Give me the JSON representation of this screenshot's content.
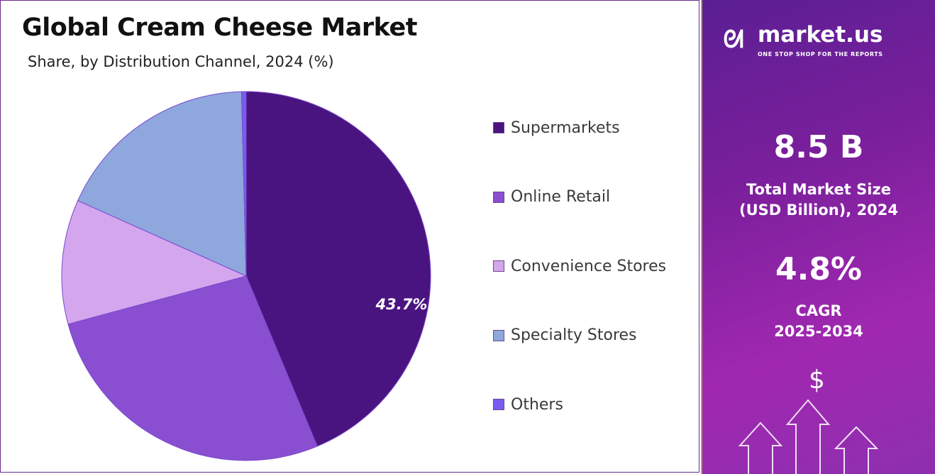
{
  "header": {
    "title": "Global Cream Cheese Market",
    "subtitle": "Share, by Distribution Channel, 2024 (%)"
  },
  "chart_data": {
    "type": "pie",
    "title": "Global Cream Cheese Market",
    "subtitle": "Share, by Distribution Channel, 2024 (%)",
    "categories": [
      "Supermarkets",
      "Online Retail",
      "Convenience Stores",
      "Specialty Stores",
      "Others"
    ],
    "values": [
      43.7,
      27.1,
      10.9,
      17.9,
      0.4
    ],
    "colors": [
      "#4a1480",
      "#8a4fd0",
      "#d3a6ee",
      "#8ea7dc",
      "#7a5cf2"
    ],
    "data_labels": [
      "43.7%",
      "",
      "",
      "",
      ""
    ],
    "legend_position": "right"
  },
  "sidebar": {
    "brand": "market.us",
    "tagline": "ONE STOP SHOP FOR THE REPORTS",
    "market_size": "8.5 B",
    "market_size_label_1": "Total Market Size",
    "market_size_label_2": "(USD Billion), 2024",
    "cagr": "4.8%",
    "cagr_label_1": "CAGR",
    "cagr_label_2": "2025-2034",
    "currency_symbol": "$"
  }
}
